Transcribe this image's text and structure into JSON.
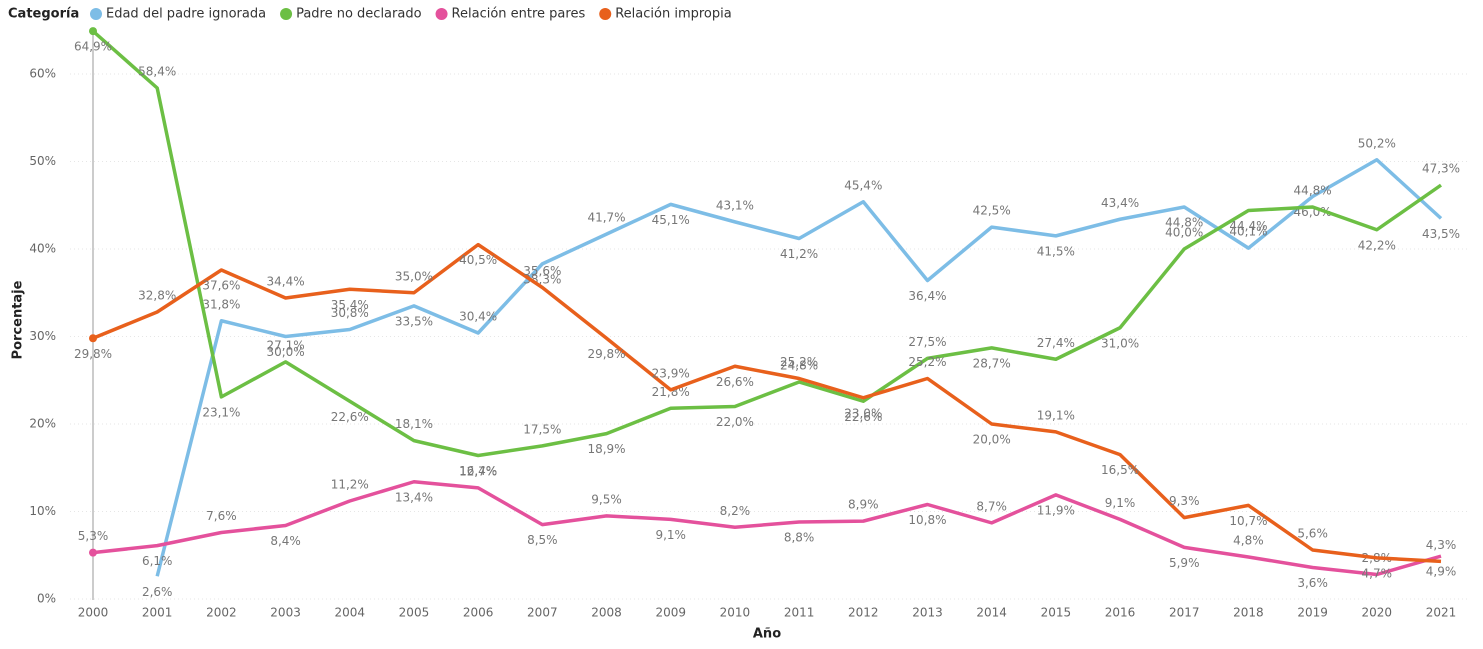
{
  "chart_data": {
    "type": "line",
    "legend_title": "Categoría",
    "x_label": "Año",
    "y_label": "Porcentaje",
    "categories": [
      "2000",
      "2001",
      "2002",
      "2003",
      "2004",
      "2005",
      "2006",
      "2007",
      "2008",
      "2009",
      "2010",
      "2011",
      "2012",
      "2013",
      "2014",
      "2015",
      "2016",
      "2017",
      "2018",
      "2019",
      "2020",
      "2021"
    ],
    "ylim": [
      0,
      65
    ],
    "yticks": [
      {
        "value": 0,
        "label": "0%"
      },
      {
        "value": 10,
        "label": "10%"
      },
      {
        "value": 20,
        "label": "20%"
      },
      {
        "value": 30,
        "label": "30%"
      },
      {
        "value": 40,
        "label": "40%"
      },
      {
        "value": 50,
        "label": "50%"
      },
      {
        "value": 60,
        "label": "60%"
      }
    ],
    "grid": true,
    "series": [
      {
        "name": "Edad del padre ignorada",
        "color": "#7dbde6",
        "values": [
          null,
          2.6,
          31.8,
          30.0,
          30.8,
          33.5,
          30.4,
          38.3,
          41.7,
          45.1,
          43.1,
          41.2,
          45.4,
          36.4,
          42.5,
          41.5,
          43.4,
          44.8,
          40.1,
          46.0,
          50.2,
          43.5
        ],
        "value_labels": [
          null,
          "2,6%",
          "31,8%",
          "30,0%",
          "30,8%",
          "33,5%",
          "30,4%",
          "38,3%",
          "41,7%",
          "45,1%",
          "43,1%",
          "41,2%",
          "45,4%",
          "36,4%",
          "42,5%",
          "41,5%",
          "43,4%",
          "44,8%",
          "40,1%",
          "46,0%",
          "50,2%",
          "43,5%"
        ]
      },
      {
        "name": "Padre no declarado",
        "color": "#6cbf44",
        "values": [
          64.9,
          58.4,
          23.1,
          27.1,
          22.6,
          18.1,
          16.4,
          17.5,
          18.9,
          21.8,
          22.0,
          24.8,
          22.6,
          27.5,
          28.7,
          27.4,
          31.0,
          40.0,
          44.4,
          44.8,
          42.2,
          47.3
        ],
        "value_labels": [
          "64,9%",
          "58,4%",
          "23,1%",
          "27,1%",
          "22,6%",
          "18,1%",
          "16,4%",
          "17,5%",
          "18,9%",
          "21,8%",
          "22,0%",
          "24,8%",
          "22,6%",
          "27,5%",
          "28,7%",
          "27,4%",
          "31,0%",
          "40,0%",
          "44,4%",
          "44,8%",
          "42,2%",
          "47,3%"
        ]
      },
      {
        "name": "Relación entre pares",
        "color": "#e4519c",
        "values": [
          5.3,
          6.1,
          7.6,
          8.4,
          11.2,
          13.4,
          12.7,
          8.5,
          9.5,
          9.1,
          8.2,
          8.8,
          8.9,
          10.8,
          8.7,
          11.9,
          9.1,
          5.9,
          4.8,
          3.6,
          2.8,
          4.9
        ],
        "value_labels": [
          "5,3%",
          "6,1%",
          "7,6%",
          "8,4%",
          "11,2%",
          "13,4%",
          "12,7%",
          "8,5%",
          "9,5%",
          "9,1%",
          "8,2%",
          "8,8%",
          "8,9%",
          "10,8%",
          "8,7%",
          "11,9%",
          "9,1%",
          "5,9%",
          "4,8%",
          "3,6%",
          "2,8%",
          "4,9%"
        ]
      },
      {
        "name": "Relación impropia",
        "color": "#e8601c",
        "values": [
          29.8,
          32.8,
          37.6,
          34.4,
          35.4,
          35.0,
          40.5,
          35.6,
          29.8,
          23.9,
          26.6,
          25.2,
          23.0,
          25.2,
          20.0,
          19.1,
          16.5,
          9.3,
          10.7,
          5.6,
          4.7,
          4.3
        ],
        "value_labels": [
          "29,8%",
          "32,8%",
          "37,6%",
          "34,4%",
          "35,4%",
          "35,0%",
          "40,5%",
          "35,6%",
          "29,8%",
          "23,9%",
          "26,6%",
          "25,2%",
          "23,0%",
          "25,2%",
          "20,0%",
          "19,1%",
          "16,5%",
          "9,3%",
          "10,7%",
          "5,6%",
          "4,7%",
          "4,3%"
        ]
      }
    ]
  }
}
